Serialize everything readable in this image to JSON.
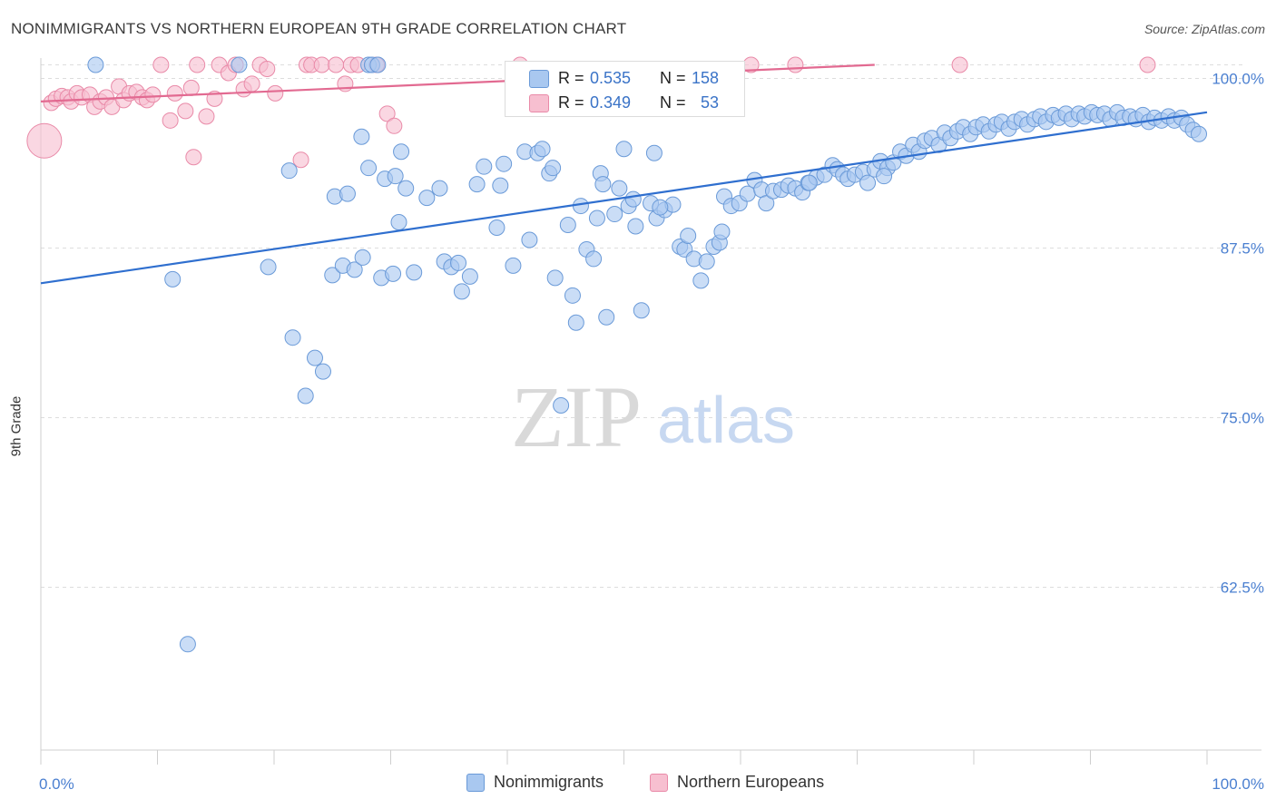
{
  "title": "NONIMMIGRANTS VS NORTHERN EUROPEAN 9TH GRADE CORRELATION CHART",
  "source": "Source: ZipAtlas.com",
  "watermark": {
    "zip": "ZIP",
    "atlas": "atlas"
  },
  "colors": {
    "blue_fill": "#a9c8f0",
    "blue_stroke": "#6a9ad8",
    "blue_line": "#2f6fcf",
    "pink_fill": "#f7bfd0",
    "pink_stroke": "#e98aa8",
    "pink_line": "#e26a91",
    "tick_label": "#4a7fd0",
    "grid": "#dddddd"
  },
  "legend": {
    "blue_label": "Nonimmigrants",
    "pink_label": "Northern Europeans",
    "blue_r_label": "R = ",
    "blue_r_value": "0.535",
    "blue_n_label": "N = ",
    "blue_n_value": "158",
    "pink_r_label": "R = ",
    "pink_r_value": "0.349",
    "pink_n_label": "N = ",
    "pink_n_value": "53"
  },
  "chart_data": {
    "type": "scatter",
    "title": "NONIMMIGRANTS VS NORTHERN EUROPEAN 9TH GRADE CORRELATION CHART",
    "xlabel": "",
    "ylabel": "9th Grade",
    "xlim": [
      0,
      100
    ],
    "ylim": [
      50.5,
      101.5
    ],
    "x_tick_labels": [
      "0.0%",
      "100.0%"
    ],
    "y_ticks": [
      62.5,
      75.0,
      87.5,
      100.0
    ],
    "y_tick_labels": [
      "62.5%",
      "75.0%",
      "87.5%",
      "100.0%"
    ],
    "grid": true,
    "legend_position": "top-center",
    "series": [
      {
        "name": "Nonimmigrants",
        "R": 0.535,
        "N": 158,
        "trend": {
          "x": [
            0,
            100
          ],
          "y": [
            84.9,
            97.5
          ]
        },
        "points": [
          [
            4.7,
            101
          ],
          [
            11.3,
            85.2
          ],
          [
            12.6,
            58.3
          ],
          [
            17.0,
            101
          ],
          [
            19.5,
            86.1
          ],
          [
            21.3,
            93.2
          ],
          [
            21.6,
            80.9
          ],
          [
            22.7,
            76.6
          ],
          [
            23.5,
            79.4
          ],
          [
            24.2,
            78.4
          ],
          [
            25.0,
            85.5
          ],
          [
            25.2,
            91.3
          ],
          [
            25.9,
            86.2
          ],
          [
            26.3,
            91.5
          ],
          [
            26.9,
            85.9
          ],
          [
            27.5,
            95.7
          ],
          [
            28.1,
            93.4
          ],
          [
            28.1,
            101
          ],
          [
            28.4,
            101
          ],
          [
            28.9,
            101
          ],
          [
            29.2,
            85.3
          ],
          [
            29.5,
            92.6
          ],
          [
            30.2,
            85.6
          ],
          [
            30.4,
            92.8
          ],
          [
            30.9,
            94.6
          ],
          [
            31.3,
            91.9
          ],
          [
            32.0,
            85.7
          ],
          [
            33.1,
            91.2
          ],
          [
            34.6,
            86.5
          ],
          [
            35.2,
            86.1
          ],
          [
            35.8,
            86.4
          ],
          [
            36.1,
            84.3
          ],
          [
            36.8,
            85.4
          ],
          [
            37.4,
            92.2
          ],
          [
            38.0,
            93.5
          ],
          [
            39.1,
            89.0
          ],
          [
            39.4,
            92.1
          ],
          [
            40.5,
            86.2
          ],
          [
            41.5,
            94.6
          ],
          [
            41.9,
            88.1
          ],
          [
            42.6,
            94.5
          ],
          [
            43.0,
            94.8
          ],
          [
            43.6,
            93.0
          ],
          [
            44.1,
            85.3
          ],
          [
            44.6,
            75.9
          ],
          [
            45.2,
            89.2
          ],
          [
            45.6,
            84.0
          ],
          [
            45.9,
            82.0
          ],
          [
            46.3,
            90.6
          ],
          [
            46.8,
            87.4
          ],
          [
            47.4,
            86.7
          ],
          [
            47.7,
            89.7
          ],
          [
            48.0,
            93.0
          ],
          [
            48.5,
            82.4
          ],
          [
            49.2,
            90.0
          ],
          [
            49.6,
            91.9
          ],
          [
            50.0,
            94.8
          ],
          [
            50.4,
            90.6
          ],
          [
            50.8,
            91.1
          ],
          [
            51.0,
            89.1
          ],
          [
            51.5,
            82.9
          ],
          [
            52.3,
            90.8
          ],
          [
            52.6,
            94.5
          ],
          [
            52.8,
            89.7
          ],
          [
            53.5,
            90.3
          ],
          [
            54.2,
            90.7
          ],
          [
            54.8,
            87.6
          ],
          [
            55.2,
            87.4
          ],
          [
            55.5,
            88.4
          ],
          [
            56.0,
            86.7
          ],
          [
            56.6,
            85.1
          ],
          [
            57.1,
            86.5
          ],
          [
            57.7,
            87.6
          ],
          [
            58.2,
            87.9
          ],
          [
            58.6,
            91.3
          ],
          [
            59.2,
            90.6
          ],
          [
            59.9,
            90.8
          ],
          [
            60.6,
            91.5
          ],
          [
            61.2,
            92.5
          ],
          [
            61.8,
            91.8
          ],
          [
            62.2,
            90.8
          ],
          [
            62.8,
            91.7
          ],
          [
            63.5,
            91.8
          ],
          [
            64.1,
            92.1
          ],
          [
            64.7,
            91.9
          ],
          [
            65.3,
            91.6
          ],
          [
            65.8,
            92.3
          ],
          [
            66.5,
            92.7
          ],
          [
            67.2,
            92.9
          ],
          [
            67.9,
            93.6
          ],
          [
            68.3,
            93.3
          ],
          [
            68.8,
            92.9
          ],
          [
            69.2,
            92.6
          ],
          [
            69.8,
            92.9
          ],
          [
            70.5,
            93.1
          ],
          [
            70.9,
            92.3
          ],
          [
            71.5,
            93.3
          ],
          [
            72.0,
            93.9
          ],
          [
            72.6,
            93.4
          ],
          [
            73.1,
            93.8
          ],
          [
            73.7,
            94.6
          ],
          [
            74.2,
            94.3
          ],
          [
            74.8,
            95.1
          ],
          [
            75.3,
            94.6
          ],
          [
            75.8,
            95.4
          ],
          [
            76.4,
            95.6
          ],
          [
            77.0,
            95.1
          ],
          [
            77.5,
            96.0
          ],
          [
            78.0,
            95.6
          ],
          [
            78.6,
            96.1
          ],
          [
            79.1,
            96.4
          ],
          [
            79.7,
            95.9
          ],
          [
            80.2,
            96.4
          ],
          [
            80.8,
            96.6
          ],
          [
            81.3,
            96.1
          ],
          [
            81.9,
            96.6
          ],
          [
            82.4,
            96.8
          ],
          [
            83.0,
            96.3
          ],
          [
            83.5,
            96.8
          ],
          [
            84.1,
            97.0
          ],
          [
            84.6,
            96.6
          ],
          [
            85.2,
            97.0
          ],
          [
            85.7,
            97.2
          ],
          [
            86.2,
            96.8
          ],
          [
            86.8,
            97.3
          ],
          [
            87.3,
            97.1
          ],
          [
            87.9,
            97.4
          ],
          [
            88.4,
            97.0
          ],
          [
            89.0,
            97.4
          ],
          [
            89.5,
            97.2
          ],
          [
            90.1,
            97.5
          ],
          [
            90.6,
            97.3
          ],
          [
            91.2,
            97.4
          ],
          [
            91.7,
            97.0
          ],
          [
            92.3,
            97.5
          ],
          [
            92.8,
            97.1
          ],
          [
            93.4,
            97.2
          ],
          [
            93.9,
            97.0
          ],
          [
            94.5,
            97.3
          ],
          [
            95.0,
            96.8
          ],
          [
            95.5,
            97.1
          ],
          [
            96.1,
            96.9
          ],
          [
            96.7,
            97.2
          ],
          [
            97.2,
            96.9
          ],
          [
            97.8,
            97.1
          ],
          [
            98.3,
            96.6
          ],
          [
            98.8,
            96.2
          ],
          [
            99.3,
            95.9
          ],
          [
            72.3,
            92.8
          ],
          [
            65.9,
            92.3
          ],
          [
            58.4,
            88.7
          ],
          [
            53.1,
            90.5
          ],
          [
            48.2,
            92.2
          ],
          [
            43.9,
            93.4
          ],
          [
            39.7,
            93.7
          ],
          [
            34.2,
            91.9
          ],
          [
            30.7,
            89.4
          ],
          [
            27.6,
            86.8
          ]
        ]
      },
      {
        "name": "Northern Europeans",
        "R": 0.349,
        "N": 53,
        "trend": {
          "x": [
            0,
            71.5
          ],
          "y": [
            98.3,
            101
          ]
        },
        "points": [
          [
            0.3,
            95.4
          ],
          [
            0.9,
            98.2
          ],
          [
            1.3,
            98.5
          ],
          [
            1.8,
            98.7
          ],
          [
            2.3,
            98.6
          ],
          [
            2.6,
            98.3
          ],
          [
            3.1,
            98.9
          ],
          [
            3.5,
            98.6
          ],
          [
            4.2,
            98.8
          ],
          [
            4.6,
            97.9
          ],
          [
            5.1,
            98.3
          ],
          [
            5.6,
            98.6
          ],
          [
            6.1,
            97.9
          ],
          [
            6.7,
            99.4
          ],
          [
            7.1,
            98.4
          ],
          [
            7.6,
            98.9
          ],
          [
            8.2,
            99.0
          ],
          [
            8.7,
            98.6
          ],
          [
            9.1,
            98.4
          ],
          [
            9.6,
            98.8
          ],
          [
            10.3,
            101
          ],
          [
            11.1,
            96.9
          ],
          [
            11.5,
            98.9
          ],
          [
            12.4,
            97.6
          ],
          [
            12.9,
            99.3
          ],
          [
            13.1,
            94.2
          ],
          [
            13.4,
            101
          ],
          [
            14.2,
            97.2
          ],
          [
            14.9,
            98.5
          ],
          [
            15.3,
            101
          ],
          [
            16.1,
            100.4
          ],
          [
            16.7,
            101
          ],
          [
            17.4,
            99.2
          ],
          [
            18.1,
            99.6
          ],
          [
            18.8,
            101
          ],
          [
            19.4,
            100.7
          ],
          [
            20.1,
            98.9
          ],
          [
            22.3,
            94.0
          ],
          [
            22.8,
            101
          ],
          [
            23.2,
            101
          ],
          [
            24.1,
            101
          ],
          [
            25.3,
            101
          ],
          [
            26.1,
            99.6
          ],
          [
            26.6,
            101
          ],
          [
            27.2,
            101
          ],
          [
            28.8,
            101
          ],
          [
            29.7,
            97.4
          ],
          [
            30.3,
            96.5
          ],
          [
            41.1,
            101
          ],
          [
            60.9,
            101
          ],
          [
            64.7,
            101
          ],
          [
            78.8,
            101
          ],
          [
            94.9,
            101
          ]
        ]
      }
    ]
  }
}
